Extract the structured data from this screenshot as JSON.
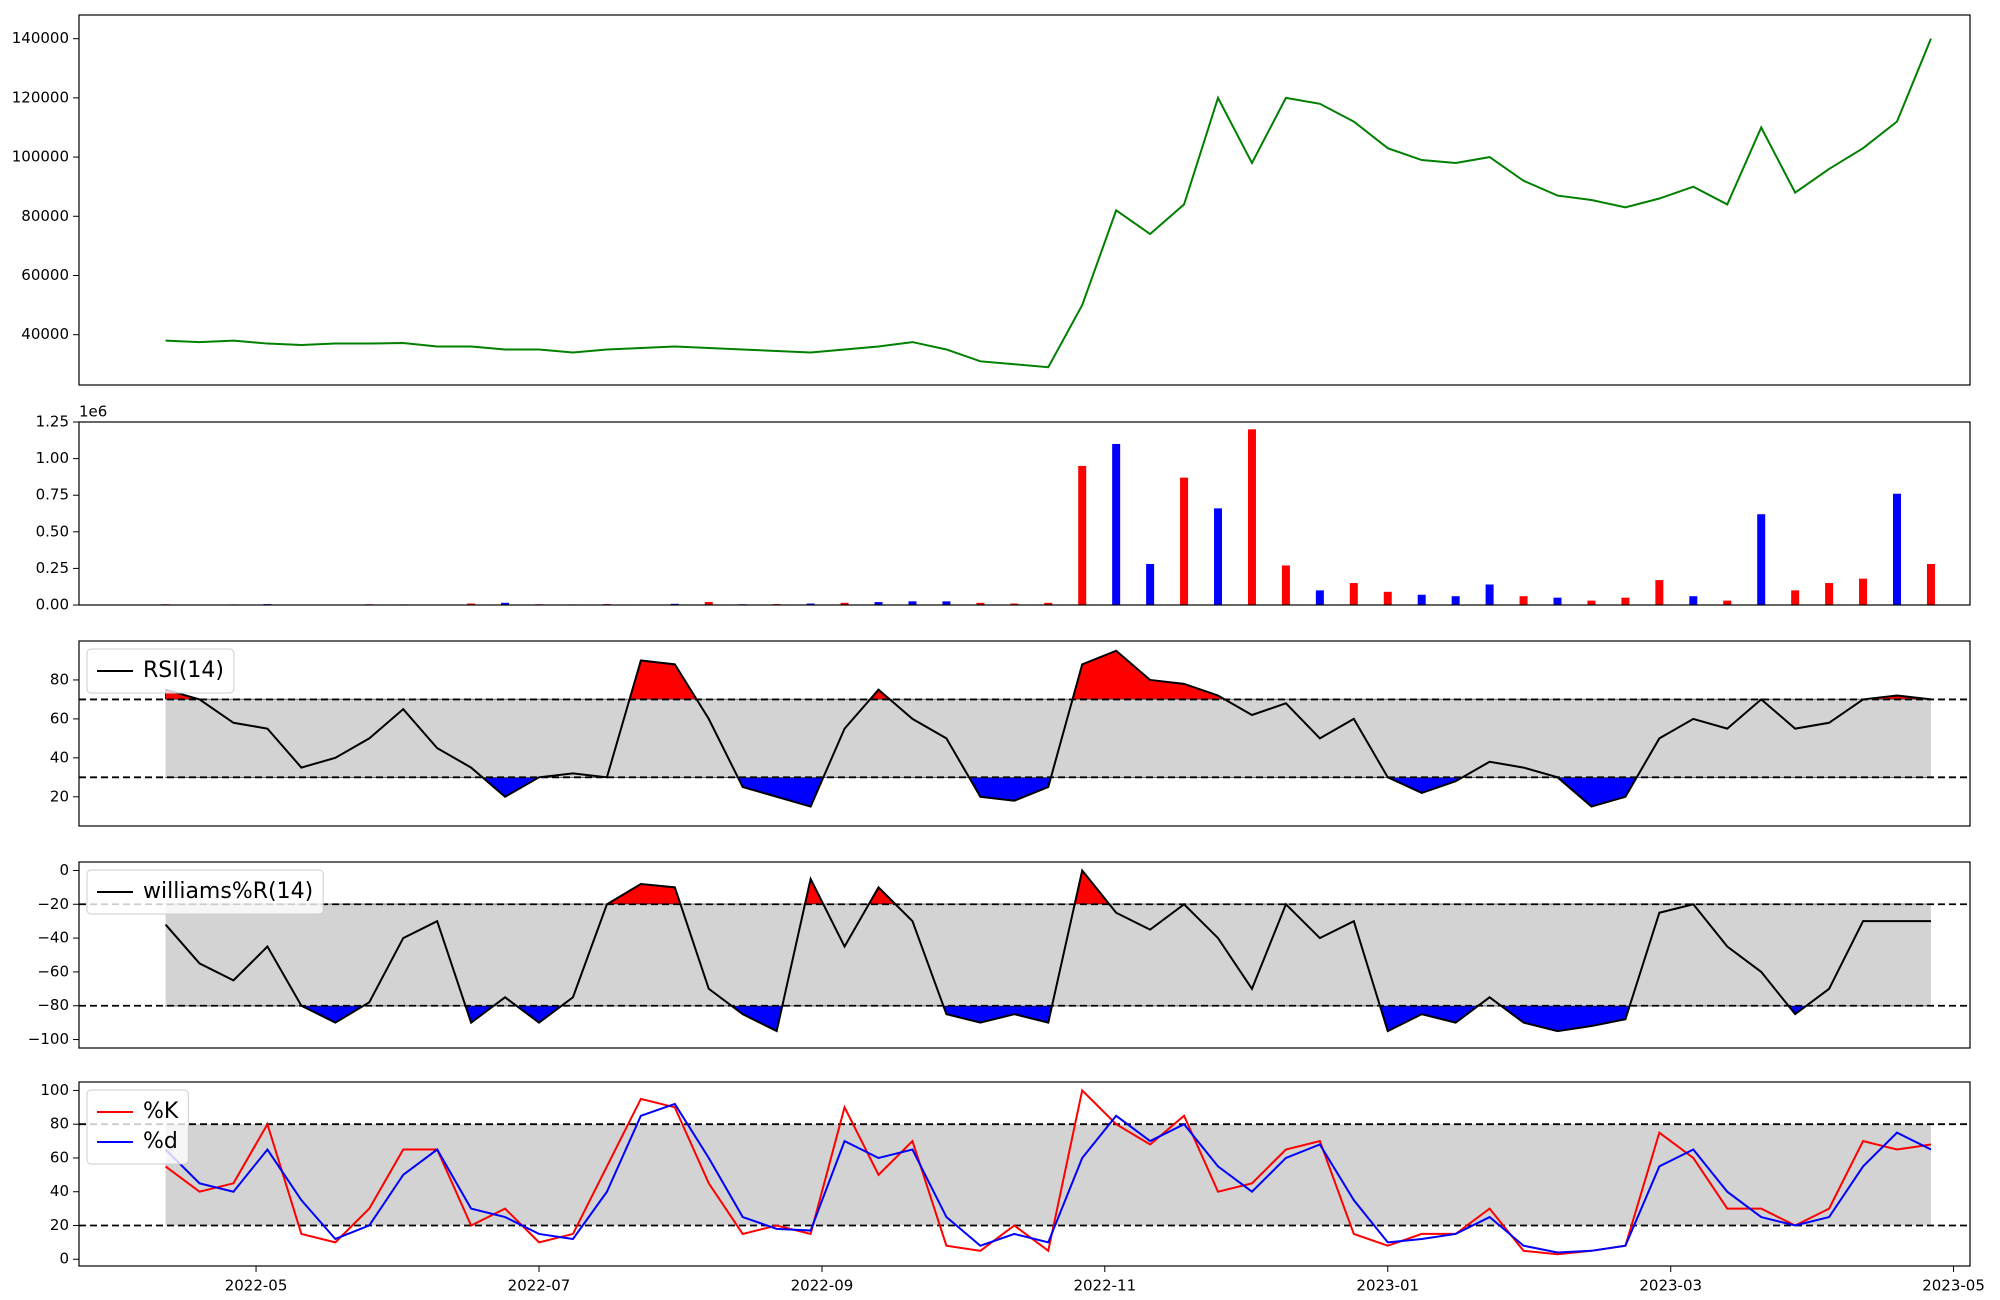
{
  "chart_data": [
    {
      "type": "line",
      "x": [
        2022.28,
        2022.3,
        2022.32,
        2022.34,
        2022.36,
        2022.38,
        2022.4,
        2022.42,
        2022.44,
        2022.46,
        2022.48,
        2022.5,
        2022.52,
        2022.54,
        2022.56,
        2022.58,
        2022.6,
        2022.62,
        2022.64,
        2022.66,
        2022.68,
        2022.7,
        2022.72,
        2022.74,
        2022.76,
        2022.78,
        2022.8,
        2022.82,
        2022.84,
        2022.86,
        2022.88,
        2022.9,
        2022.92,
        2022.94,
        2022.96,
        2022.98,
        2023.0,
        2023.02,
        2023.04,
        2023.06,
        2023.08,
        2023.1,
        2023.12,
        2023.14,
        2023.16,
        2023.18,
        2023.2,
        2023.22,
        2023.24,
        2023.26,
        2023.28,
        2023.3,
        2023.32
      ],
      "values": [
        38000,
        37500,
        38000,
        37000,
        36500,
        37000,
        37000,
        37200,
        36000,
        36000,
        35000,
        35000,
        34000,
        35000,
        35500,
        36000,
        35500,
        35000,
        34500,
        34000,
        35000,
        36000,
        37500,
        35000,
        31000,
        30000,
        29000,
        50000,
        82000,
        74000,
        84000,
        120000,
        98000,
        120000,
        118000,
        112000,
        103000,
        99000,
        98000,
        100000,
        92000,
        87000,
        85500,
        83000,
        86000,
        90000,
        84000,
        110000,
        88000,
        96000,
        103000,
        112000,
        140000
      ],
      "color": "green",
      "xlim": [
        2022.229,
        2023.343
      ],
      "ylim": [
        23000,
        148000
      ],
      "yticks": [
        40000,
        60000,
        80000,
        100000,
        120000,
        140000
      ]
    },
    {
      "type": "bar",
      "x": [
        2022.28,
        2022.3,
        2022.32,
        2022.34,
        2022.36,
        2022.38,
        2022.4,
        2022.42,
        2022.44,
        2022.46,
        2022.48,
        2022.5,
        2022.52,
        2022.54,
        2022.56,
        2022.58,
        2022.6,
        2022.62,
        2022.64,
        2022.66,
        2022.68,
        2022.7,
        2022.72,
        2022.74,
        2022.76,
        2022.78,
        2022.8,
        2022.82,
        2022.84,
        2022.86,
        2022.88,
        2022.9,
        2022.92,
        2022.94,
        2022.96,
        2022.98,
        2023.0,
        2023.02,
        2023.04,
        2023.06,
        2023.08,
        2023.1,
        2023.12,
        2023.14,
        2023.16,
        2023.18,
        2023.2,
        2023.22,
        2023.24,
        2023.26,
        2023.28,
        2023.3,
        2023.32
      ],
      "values": [
        5000,
        3000,
        4000,
        6000,
        3000,
        2000,
        5000,
        4000,
        3000,
        10000,
        15000,
        5000,
        4000,
        6000,
        3000,
        8000,
        20000,
        5000,
        6000,
        10000,
        15000,
        20000,
        25000,
        25000,
        15000,
        10000,
        15000,
        950000,
        1100000,
        280000,
        870000,
        660000,
        1200000,
        270000,
        100000,
        150000,
        90000,
        70000,
        60000,
        140000,
        60000,
        50000,
        30000,
        50000,
        170000,
        60000,
        30000,
        620000,
        100000,
        150000,
        180000,
        760000,
        280000
      ],
      "colors": [
        "red",
        "blue",
        "red",
        "blue",
        "red",
        "blue",
        "red",
        "red",
        "blue",
        "red",
        "blue",
        "red",
        "blue",
        "red",
        "red",
        "blue",
        "red",
        "blue",
        "red",
        "blue",
        "red",
        "blue",
        "blue",
        "blue",
        "red",
        "red",
        "red",
        "red",
        "blue",
        "blue",
        "red",
        "blue",
        "red",
        "red",
        "blue",
        "red",
        "red",
        "blue",
        "blue",
        "blue",
        "red",
        "blue",
        "red",
        "red",
        "red",
        "blue",
        "red",
        "blue",
        "red",
        "red",
        "red",
        "blue",
        "red"
      ],
      "axis_offset_label": "1e6",
      "xlim": [
        2022.229,
        2023.343
      ],
      "ylim": [
        0,
        1250000
      ],
      "yticks": [
        {
          "value": 0,
          "label": "0.00"
        },
        {
          "value": 250000,
          "label": "0.25"
        },
        {
          "value": 500000,
          "label": "0.50"
        },
        {
          "value": 750000,
          "label": "0.75"
        },
        {
          "value": 1000000,
          "label": "1.00"
        },
        {
          "value": 1250000,
          "label": "1.25"
        }
      ]
    },
    {
      "type": "line",
      "x": [
        2022.28,
        2022.3,
        2022.32,
        2022.34,
        2022.36,
        2022.38,
        2022.4,
        2022.42,
        2022.44,
        2022.46,
        2022.48,
        2022.5,
        2022.52,
        2022.54,
        2022.56,
        2022.58,
        2022.6,
        2022.62,
        2022.64,
        2022.66,
        2022.68,
        2022.7,
        2022.72,
        2022.74,
        2022.76,
        2022.78,
        2022.8,
        2022.82,
        2022.84,
        2022.86,
        2022.88,
        2022.9,
        2022.92,
        2022.94,
        2022.96,
        2022.98,
        2023.0,
        2023.02,
        2023.04,
        2023.06,
        2023.08,
        2023.1,
        2023.12,
        2023.14,
        2023.16,
        2023.18,
        2023.2,
        2023.22,
        2023.24,
        2023.26,
        2023.28,
        2023.3,
        2023.32
      ],
      "series": [
        {
          "name": "RSI(14)",
          "color": "black",
          "values": [
            75,
            70,
            58,
            55,
            35,
            40,
            50,
            65,
            45,
            35,
            20,
            30,
            32,
            30,
            90,
            88,
            60,
            25,
            20,
            15,
            55,
            75,
            60,
            50,
            20,
            18,
            25,
            88,
            95,
            80,
            78,
            72,
            62,
            68,
            50,
            60,
            30,
            22,
            28,
            38,
            35,
            30,
            15,
            20,
            50,
            60,
            55,
            70,
            55,
            58,
            70,
            72,
            70
          ]
        }
      ],
      "thresholds": {
        "lower": 30,
        "upper": 70
      },
      "fill_colors": {
        "band": "#d3d3d3",
        "above": "red",
        "below": "blue"
      },
      "legend": "upper left",
      "xlim": [
        2022.229,
        2023.343
      ],
      "ylim": [
        5,
        100
      ],
      "yticks": [
        20,
        40,
        60,
        80
      ]
    },
    {
      "type": "line",
      "x": [
        2022.28,
        2022.3,
        2022.32,
        2022.34,
        2022.36,
        2022.38,
        2022.4,
        2022.42,
        2022.44,
        2022.46,
        2022.48,
        2022.5,
        2022.52,
        2022.54,
        2022.56,
        2022.58,
        2022.6,
        2022.62,
        2022.64,
        2022.66,
        2022.68,
        2022.7,
        2022.72,
        2022.74,
        2022.76,
        2022.78,
        2022.8,
        2022.82,
        2022.84,
        2022.86,
        2022.88,
        2022.9,
        2022.92,
        2022.94,
        2022.96,
        2022.98,
        2023.0,
        2023.02,
        2023.04,
        2023.06,
        2023.08,
        2023.1,
        2023.12,
        2023.14,
        2023.16,
        2023.18,
        2023.2,
        2023.22,
        2023.24,
        2023.26,
        2023.28,
        2023.3,
        2023.32
      ],
      "series": [
        {
          "name": "williams%R(14)",
          "color": "black",
          "values": [
            -32,
            -55,
            -65,
            -45,
            -80,
            -90,
            -78,
            -40,
            -30,
            -90,
            -75,
            -90,
            -75,
            -20,
            -8,
            -10,
            -70,
            -85,
            -95,
            -5,
            -45,
            -10,
            -30,
            -85,
            -90,
            -85,
            -90,
            0,
            -25,
            -35,
            -20,
            -40,
            -70,
            -20,
            -40,
            -30,
            -95,
            -85,
            -90,
            -75,
            -90,
            -95,
            -92,
            -88,
            -25,
            -20,
            -45,
            -60,
            -85,
            -70,
            -30,
            -30,
            -30
          ]
        }
      ],
      "thresholds": {
        "lower": -80,
        "upper": -20
      },
      "fill_colors": {
        "band": "#d3d3d3",
        "above": "red",
        "below": "blue"
      },
      "legend": "upper left",
      "xlim": [
        2022.229,
        2023.343
      ],
      "ylim": [
        -105,
        5
      ],
      "yticks": [
        0,
        {
          "value": -20,
          "label": "−20"
        },
        {
          "value": -40,
          "label": "−40"
        },
        {
          "value": -60,
          "label": "−60"
        },
        {
          "value": -80,
          "label": "−80"
        },
        {
          "value": -100,
          "label": "−100"
        }
      ]
    },
    {
      "type": "line",
      "x": [
        2022.28,
        2022.3,
        2022.32,
        2022.34,
        2022.36,
        2022.38,
        2022.4,
        2022.42,
        2022.44,
        2022.46,
        2022.48,
        2022.5,
        2022.52,
        2022.54,
        2022.56,
        2022.58,
        2022.6,
        2022.62,
        2022.64,
        2022.66,
        2022.68,
        2022.7,
        2022.72,
        2022.74,
        2022.76,
        2022.78,
        2022.8,
        2022.82,
        2022.84,
        2022.86,
        2022.88,
        2022.9,
        2022.92,
        2022.94,
        2022.96,
        2022.98,
        2023.0,
        2023.02,
        2023.04,
        2023.06,
        2023.08,
        2023.1,
        2023.12,
        2023.14,
        2023.16,
        2023.18,
        2023.2,
        2023.22,
        2023.24,
        2023.26,
        2023.28,
        2023.3,
        2023.32
      ],
      "series": [
        {
          "name": "%K",
          "color": "red",
          "values": [
            55,
            40,
            45,
            80,
            15,
            10,
            30,
            65,
            65,
            20,
            30,
            10,
            15,
            55,
            95,
            90,
            45,
            15,
            20,
            15,
            90,
            50,
            70,
            8,
            5,
            20,
            5,
            100,
            80,
            68,
            85,
            40,
            45,
            65,
            70,
            15,
            8,
            15,
            15,
            30,
            5,
            3,
            5,
            8,
            75,
            60,
            30,
            30,
            20,
            30,
            70,
            65,
            68
          ]
        },
        {
          "name": "%d",
          "color": "blue",
          "values": [
            65,
            45,
            40,
            65,
            35,
            12,
            20,
            50,
            65,
            30,
            25,
            15,
            12,
            40,
            85,
            92,
            60,
            25,
            18,
            17,
            70,
            60,
            65,
            25,
            8,
            15,
            10,
            60,
            85,
            70,
            80,
            55,
            40,
            60,
            68,
            35,
            10,
            12,
            15,
            25,
            8,
            4,
            5,
            8,
            55,
            65,
            40,
            25,
            20,
            25,
            55,
            75,
            65
          ]
        }
      ],
      "thresholds": {
        "lower": 20,
        "upper": 80
      },
      "fill_colors": {
        "band": "#d3d3d3"
      },
      "legend": "upper left",
      "xlim": [
        2022.229,
        2023.343
      ],
      "ylim": [
        -4,
        105
      ],
      "yticks": [
        0,
        20,
        40,
        60,
        80,
        100
      ],
      "xticks": [
        {
          "value": 2022.3333,
          "label": "2022-05"
        },
        {
          "value": 2022.5,
          "label": "2022-07"
        },
        {
          "value": 2022.6667,
          "label": "2022-09"
        },
        {
          "value": 2022.8333,
          "label": "2022-11"
        },
        {
          "value": 2023.0,
          "label": "2023-01"
        },
        {
          "value": 2023.1667,
          "label": "2023-03"
        },
        {
          "value": 2023.3333,
          "label": "2023-05"
        }
      ]
    }
  ]
}
